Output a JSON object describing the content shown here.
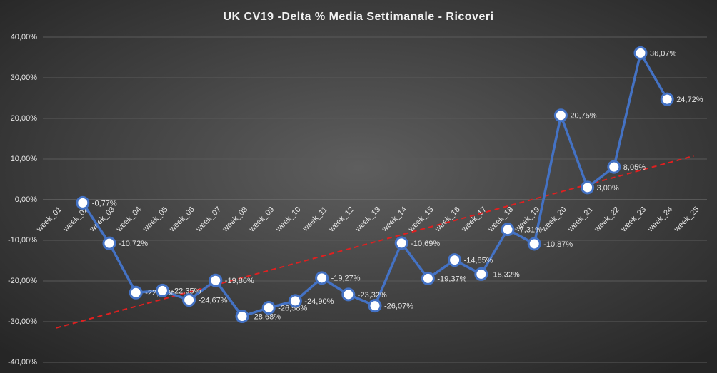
{
  "chart_data": {
    "type": "line",
    "title": "UK CV19 -Delta % Media Settimanale - Ricoveri",
    "categories": [
      "week_01",
      "week_02",
      "week_03",
      "week_04",
      "week_05",
      "week_06",
      "week_07",
      "week_08",
      "week_09",
      "week_10",
      "week_11",
      "week_12",
      "week_13",
      "week_14",
      "week_15",
      "week_16",
      "week_17",
      "week_18",
      "week_19",
      "week_20",
      "week_21",
      "week_22",
      "week_23",
      "week_24",
      "week_25"
    ],
    "series": [
      {
        "name": "Delta %",
        "color": "#4472c4",
        "values": [
          null,
          -0.77,
          -10.72,
          -22.86,
          -22.35,
          -24.67,
          -19.86,
          -28.68,
          -26.58,
          -24.9,
          -19.27,
          -23.32,
          -26.07,
          -10.69,
          -19.37,
          -14.85,
          -18.32,
          -7.31,
          -10.87,
          20.75,
          3.0,
          8.05,
          36.07,
          24.72,
          null
        ],
        "value_labels": [
          null,
          "-0,77%",
          "-10,72%",
          "-22,86%",
          "-22,35%",
          "-24,67%",
          "-19,86%",
          "-28,68%",
          "-26,58%",
          "-24,90%",
          "-19,27%",
          "-23,32%",
          "-26,07%",
          "-10,69%",
          "-19,37%",
          "-14,85%",
          "-18,32%",
          "-7,31%",
          "-10,87%",
          "20,75%",
          "3,00%",
          "8,05%",
          "36,07%",
          "24,72%",
          null
        ]
      }
    ],
    "trendline": "linear",
    "trendline_color": "#e02020",
    "ylim": [
      -40,
      40
    ],
    "yticks": [
      {
        "value": -40,
        "label": "-40,00%"
      },
      {
        "value": -30,
        "label": "-30,00%"
      },
      {
        "value": -20,
        "label": "-20,00%"
      },
      {
        "value": -10,
        "label": "-10,00%"
      },
      {
        "value": 0,
        "label": "0,00%"
      },
      {
        "value": 10,
        "label": "10,00%"
      },
      {
        "value": 20,
        "label": "20,00%"
      },
      {
        "value": 30,
        "label": "30,00%"
      },
      {
        "value": 40,
        "label": "40,00%"
      }
    ],
    "grid": true
  }
}
